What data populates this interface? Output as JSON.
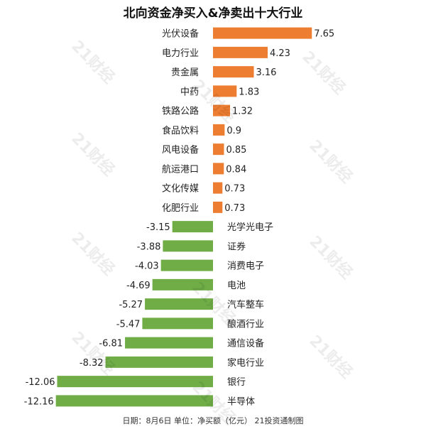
{
  "watermark": "21财经",
  "chart_data": {
    "type": "bar",
    "orientation": "horizontal",
    "title": "北向资金净买入&净卖出十大行业",
    "footer": "日期：8月6日  单位：净买额（亿元）  21投资通制图",
    "categories": [
      "光伏设备",
      "电力行业",
      "贵金属",
      "中药",
      "铁路公路",
      "食品饮料",
      "风电设备",
      "航运港口",
      "文化传媒",
      "化肥行业",
      "光学光电子",
      "证券",
      "消费电子",
      "电池",
      "汽车整车",
      "酿酒行业",
      "通信设备",
      "家电行业",
      "银行",
      "半导体"
    ],
    "value_labels": [
      "7.65",
      "4.23",
      "3.16",
      "1.83",
      "1.32",
      "0.9",
      "0.85",
      "0.84",
      "0.73",
      "0.73",
      "-3.15",
      "-3.88",
      "-4.03",
      "-4.69",
      "-5.27",
      "-5.47",
      "-6.81",
      "-8.32",
      "-12.06",
      "-12.16"
    ],
    "values": [
      7.65,
      4.23,
      3.16,
      1.83,
      1.32,
      0.9,
      0.85,
      0.84,
      0.73,
      0.73,
      -3.15,
      -3.88,
      -4.03,
      -4.69,
      -5.27,
      -5.47,
      -6.81,
      -8.32,
      -12.06,
      -12.16
    ],
    "colors": {
      "positive": "#ED7D31",
      "negative": "#70AD47"
    },
    "grid": false,
    "legend": "none"
  }
}
